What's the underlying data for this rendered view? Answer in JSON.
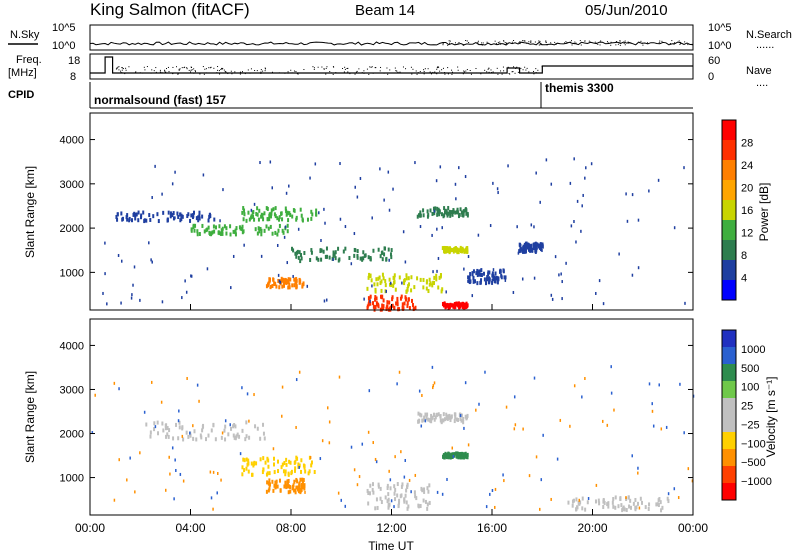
{
  "header": {
    "station": "King Salmon (fitACF)",
    "beam": "Beam 14",
    "date": "05/Jun/2010"
  },
  "side_labels": {
    "nsky": "N.Sky",
    "freq_line1": "Freq.",
    "freq_line2": "[MHz]",
    "cpid": "CPID",
    "nsearch": "N.Search",
    "nave": "Nave",
    "dots": "......",
    "dots2": "...."
  },
  "ticks": {
    "noise_left": [
      "10^5",
      "10^0"
    ],
    "noise_right": [
      "10^5",
      "10^0"
    ],
    "freq_left": [
      "18",
      "8"
    ],
    "nave_right": [
      "60",
      "0"
    ],
    "range": [
      "1000",
      "2000",
      "3000",
      "4000"
    ],
    "time": [
      "00:00",
      "04:00",
      "08:00",
      "12:00",
      "16:00",
      "20:00",
      "00:00"
    ]
  },
  "cpid_labels": {
    "first": "normalsound (fast) 157",
    "second": "themis 3300"
  },
  "colors": {
    "power": [
      "#0000ff",
      "#1f3fa0",
      "#2e7d4f",
      "#3fae3f",
      "#c8d400",
      "#ffa500",
      "#ff7f00",
      "#ff3000",
      "#ff0000"
    ],
    "velocity": [
      "#2030c0",
      "#2a60d0",
      "#2e8c4e",
      "#6fc84a",
      "#c0c0c0",
      "#c0c0c0",
      "#ffd000",
      "#ff9000",
      "#ff4000",
      "#ff0000"
    ]
  },
  "chart_data": [
    {
      "type": "heatmap",
      "name": "power",
      "ylabel": "Slant Range [km]",
      "xlabel": "",
      "ylim": [
        150,
        4600
      ],
      "xlim": [
        0,
        24
      ],
      "colorbar_label": "Power [dB]",
      "colorbar_ticks": [
        "28",
        "24",
        "20",
        "16",
        "12",
        "8",
        "4"
      ],
      "colorbar_range": [
        0,
        30
      ],
      "regions": [
        {
          "t": [
            1,
            5
          ],
          "r": [
            2200,
            2400
          ],
          "level": 6
        },
        {
          "t": [
            4,
            8
          ],
          "r": [
            1900,
            2100
          ],
          "level": 10
        },
        {
          "t": [
            6,
            9
          ],
          "r": [
            2200,
            2500
          ],
          "level": 12
        },
        {
          "t": [
            7,
            8.5
          ],
          "r": [
            700,
            900
          ],
          "level": 20
        },
        {
          "t": [
            8,
            12
          ],
          "r": [
            1300,
            1600
          ],
          "level": 8
        },
        {
          "t": [
            11,
            13
          ],
          "r": [
            200,
            500
          ],
          "level": 24
        },
        {
          "t": [
            11,
            14
          ],
          "r": [
            600,
            1000
          ],
          "level": 14
        },
        {
          "t": [
            13,
            15
          ],
          "r": [
            2300,
            2500
          ],
          "level": 8
        },
        {
          "t": [
            14,
            15
          ],
          "r": [
            1500,
            1600
          ],
          "level": 14
        },
        {
          "t": [
            14,
            15
          ],
          "r": [
            250,
            350
          ],
          "level": 28
        },
        {
          "t": [
            15,
            16.5
          ],
          "r": [
            800,
            1100
          ],
          "level": 6
        },
        {
          "t": [
            17,
            18
          ],
          "r": [
            1500,
            1700
          ],
          "level": 6
        }
      ]
    },
    {
      "type": "heatmap",
      "name": "velocity",
      "ylabel": "Slant Range [km]",
      "xlabel": "Time UT",
      "ylim": [
        150,
        4600
      ],
      "xlim": [
        0,
        24
      ],
      "colorbar_label": "Velocity [m s⁻¹]",
      "colorbar_ticks": [
        "1000",
        "500",
        "100",
        "25",
        "−25",
        "−100",
        "−500",
        "−1000"
      ],
      "colorbar_range": [
        -1000,
        1000
      ],
      "regions": [
        {
          "t": [
            2,
            7
          ],
          "r": [
            1900,
            2300
          ],
          "level": 0
        },
        {
          "t": [
            7,
            8.5
          ],
          "r": [
            700,
            1000
          ],
          "level": -500
        },
        {
          "t": [
            6,
            9
          ],
          "r": [
            1100,
            1500
          ],
          "level": -100
        },
        {
          "t": [
            11,
            13.5
          ],
          "r": [
            300,
            900
          ],
          "level": 0
        },
        {
          "t": [
            13,
            15
          ],
          "r": [
            2300,
            2500
          ],
          "level": 0
        },
        {
          "t": [
            14,
            15
          ],
          "r": [
            1500,
            1600
          ],
          "level": 100
        },
        {
          "t": [
            19,
            23
          ],
          "r": [
            300,
            600
          ],
          "level": 0
        }
      ]
    }
  ]
}
